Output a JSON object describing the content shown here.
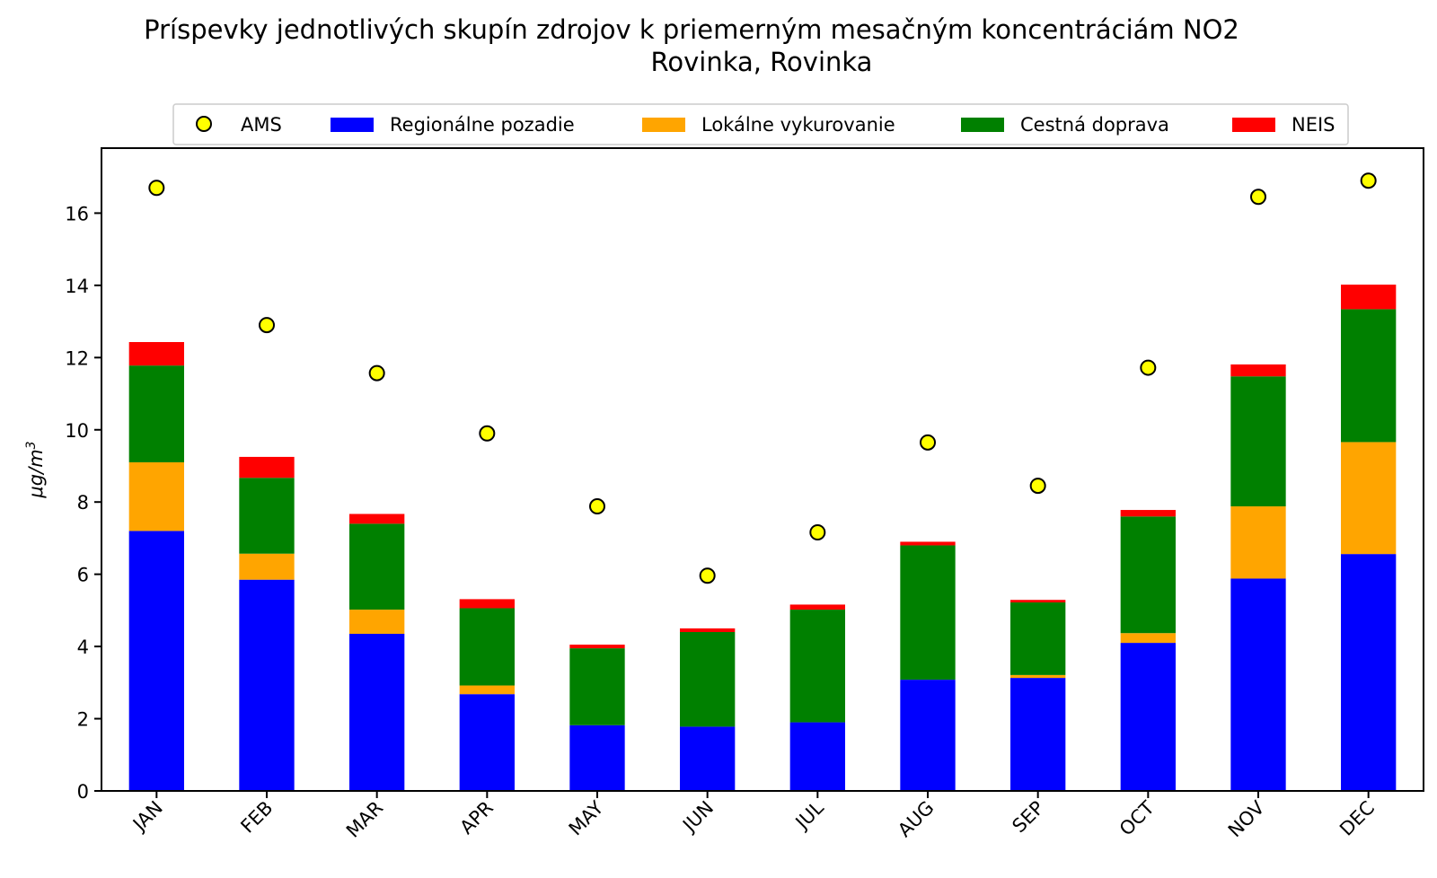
{
  "chart_data": {
    "type": "bar",
    "stacked": true,
    "title": "Príspevky jednotlivých skupín zdrojov k priemerným mesačným koncentráciám NO2",
    "subtitle": "Rovinka, Rovinka",
    "ylabel_prefix": "μg/m",
    "ylabel_sup": "3",
    "ylim": [
      0,
      17.8
    ],
    "yticks": [
      0,
      2,
      4,
      6,
      8,
      10,
      12,
      14,
      16
    ],
    "categories": [
      "JAN",
      "FEB",
      "MAR",
      "APR",
      "MAY",
      "JUN",
      "JUL",
      "AUG",
      "SEP",
      "OCT",
      "NOV",
      "DEC"
    ],
    "series": [
      {
        "name": "Regionálne pozadie",
        "color": "#0000ff",
        "values": [
          7.2,
          5.85,
          4.35,
          2.68,
          1.82,
          1.78,
          1.9,
          3.08,
          3.13,
          4.1,
          5.88,
          6.56
        ]
      },
      {
        "name": "Lokálne vykurovanie",
        "color": "#ffa500",
        "values": [
          1.9,
          0.72,
          0.67,
          0.24,
          0.0,
          0.0,
          0.0,
          0.0,
          0.08,
          0.27,
          2.0,
          3.1
        ]
      },
      {
        "name": "Cestná doprava",
        "color": "#008000",
        "values": [
          2.68,
          2.1,
          2.38,
          2.14,
          2.13,
          2.62,
          3.12,
          3.72,
          2.01,
          3.23,
          3.6,
          3.68
        ]
      },
      {
        "name": "NEIS",
        "color": "#ff0000",
        "values": [
          0.65,
          0.58,
          0.27,
          0.25,
          0.1,
          0.1,
          0.14,
          0.1,
          0.07,
          0.18,
          0.33,
          0.68
        ]
      }
    ],
    "points": {
      "name": "AMS",
      "color": "#ffff00",
      "values": [
        16.7,
        12.9,
        11.57,
        9.9,
        7.88,
        5.96,
        7.16,
        9.65,
        8.45,
        11.72,
        16.45,
        16.9
      ]
    },
    "legend": [
      "AMS",
      "Regionálne pozadie",
      "Lokálne vykurovanie",
      "Cestná doprava",
      "NEIS"
    ],
    "legend_position": "top-center"
  }
}
